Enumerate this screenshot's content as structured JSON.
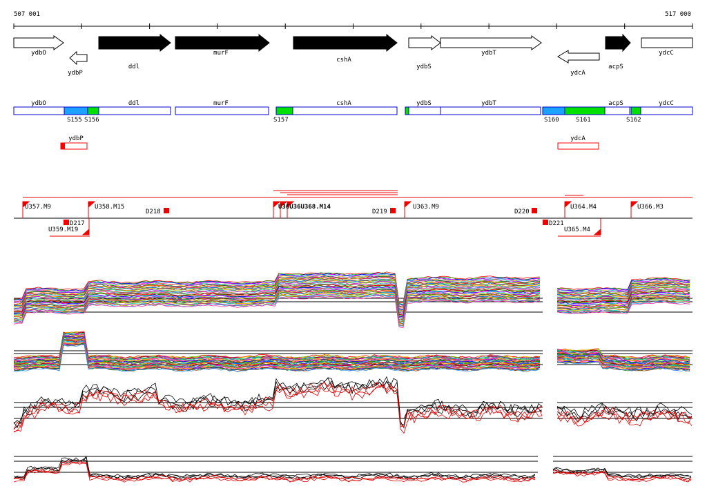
{
  "coordinates": {
    "start_label": "507 001",
    "end_label": "517 000",
    "start": 507001,
    "end": 517000
  },
  "colors": {
    "arrow_forward_fill": "#000000",
    "arrow_outline": "#000000",
    "segment_border": "#0000cc",
    "segment_blue": "#1ea0ff",
    "segment_green": "#00e000",
    "feature_red": "#ff0000",
    "track_line": "#000000",
    "trace_black": "#000000",
    "trace_red": "#dd0000"
  },
  "genes": [
    {
      "name": "ydbO",
      "dir": "forward",
      "filled": false
    },
    {
      "name": "ydbP",
      "dir": "reverse",
      "filled": false
    },
    {
      "name": "ddl",
      "dir": "forward",
      "filled": true
    },
    {
      "name": "murF",
      "dir": "forward",
      "filled": true
    },
    {
      "name": "cshA",
      "dir": "forward",
      "filled": true
    },
    {
      "name": "ydbS",
      "dir": "forward",
      "filled": false
    },
    {
      "name": "ydbT",
      "dir": "forward",
      "filled": false
    },
    {
      "name": "ydcA",
      "dir": "reverse",
      "filled": false
    },
    {
      "name": "acpS",
      "dir": "forward",
      "filled": true
    },
    {
      "name": "ydcC",
      "dir": "forward",
      "filled": false
    }
  ],
  "segment_genes": [
    "ydbO",
    "ddl",
    "murF",
    "cshA",
    "ydbS",
    "ydbT",
    "acpS",
    "ydcC"
  ],
  "segments": [
    {
      "name": "S155",
      "color": "blue"
    },
    {
      "name": "S156",
      "color": "green"
    },
    {
      "name": "S157",
      "color": "green"
    },
    {
      "name": "S160",
      "color": "blue"
    },
    {
      "name": "S161",
      "color": "green"
    },
    {
      "name": "S162",
      "color": "green"
    }
  ],
  "reverse_small": [
    "ydbP",
    "ydcA"
  ],
  "upstream_features": [
    "U357.M9",
    "U358.M15",
    "U363.M9",
    "U364.M4",
    "U366.M3"
  ],
  "overlapping_feature_text": "U36U36U368.M14",
  "lower_features": [
    "U359.M19",
    "U365.M4"
  ],
  "downstream_features": [
    "D217",
    "D218",
    "D219",
    "D220",
    "D221"
  ]
}
